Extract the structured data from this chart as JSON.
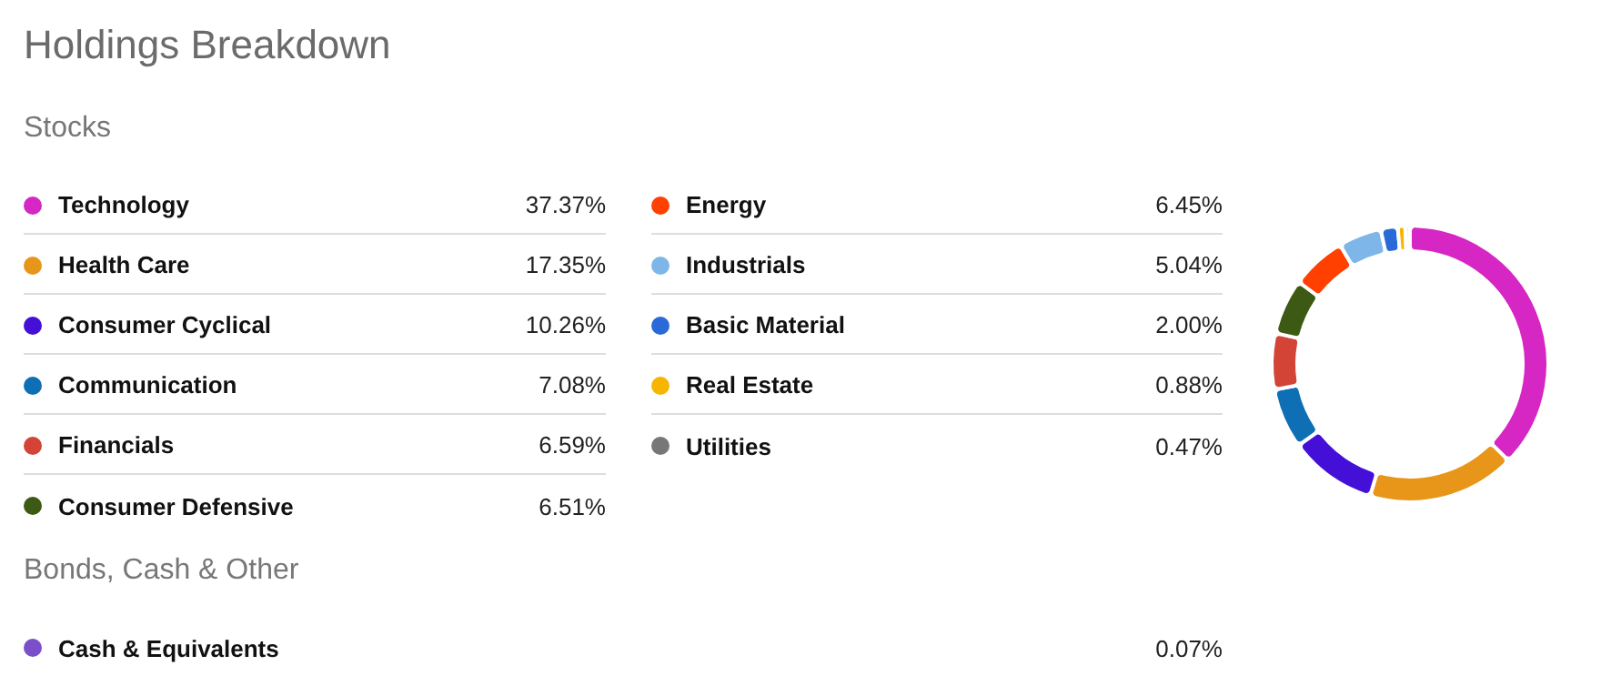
{
  "chart_data": {
    "type": "donut",
    "title": "Holdings Breakdown",
    "legend": "left",
    "annotations": [
      "Stocks",
      "Bonds, Cash & Other"
    ],
    "categories": [
      "Technology",
      "Health Care",
      "Consumer Cyclical",
      "Communication",
      "Financials",
      "Consumer Defensive",
      "Energy",
      "Industrials",
      "Basic Material",
      "Real Estate",
      "Utilities",
      "Cash & Equivalents"
    ],
    "values": [
      37.37,
      17.35,
      10.26,
      7.08,
      6.59,
      6.51,
      6.45,
      5.04,
      2.0,
      0.88,
      0.47,
      0.07
    ],
    "value_labels": [
      "37.37%",
      "17.35%",
      "10.26%",
      "7.08%",
      "6.59%",
      "6.51%",
      "6.45%",
      "5.04%",
      "2.00%",
      "0.88%",
      "0.47%",
      "0.07%"
    ],
    "colors": [
      "#d626c4",
      "#e8961a",
      "#4410d8",
      "#0f6fb5",
      "#d34336",
      "#3d5a14",
      "#ff4000",
      "#7fb6ea",
      "#2a6ad8",
      "#f7b500",
      "#777777",
      "#7b4fc9"
    ]
  }
}
